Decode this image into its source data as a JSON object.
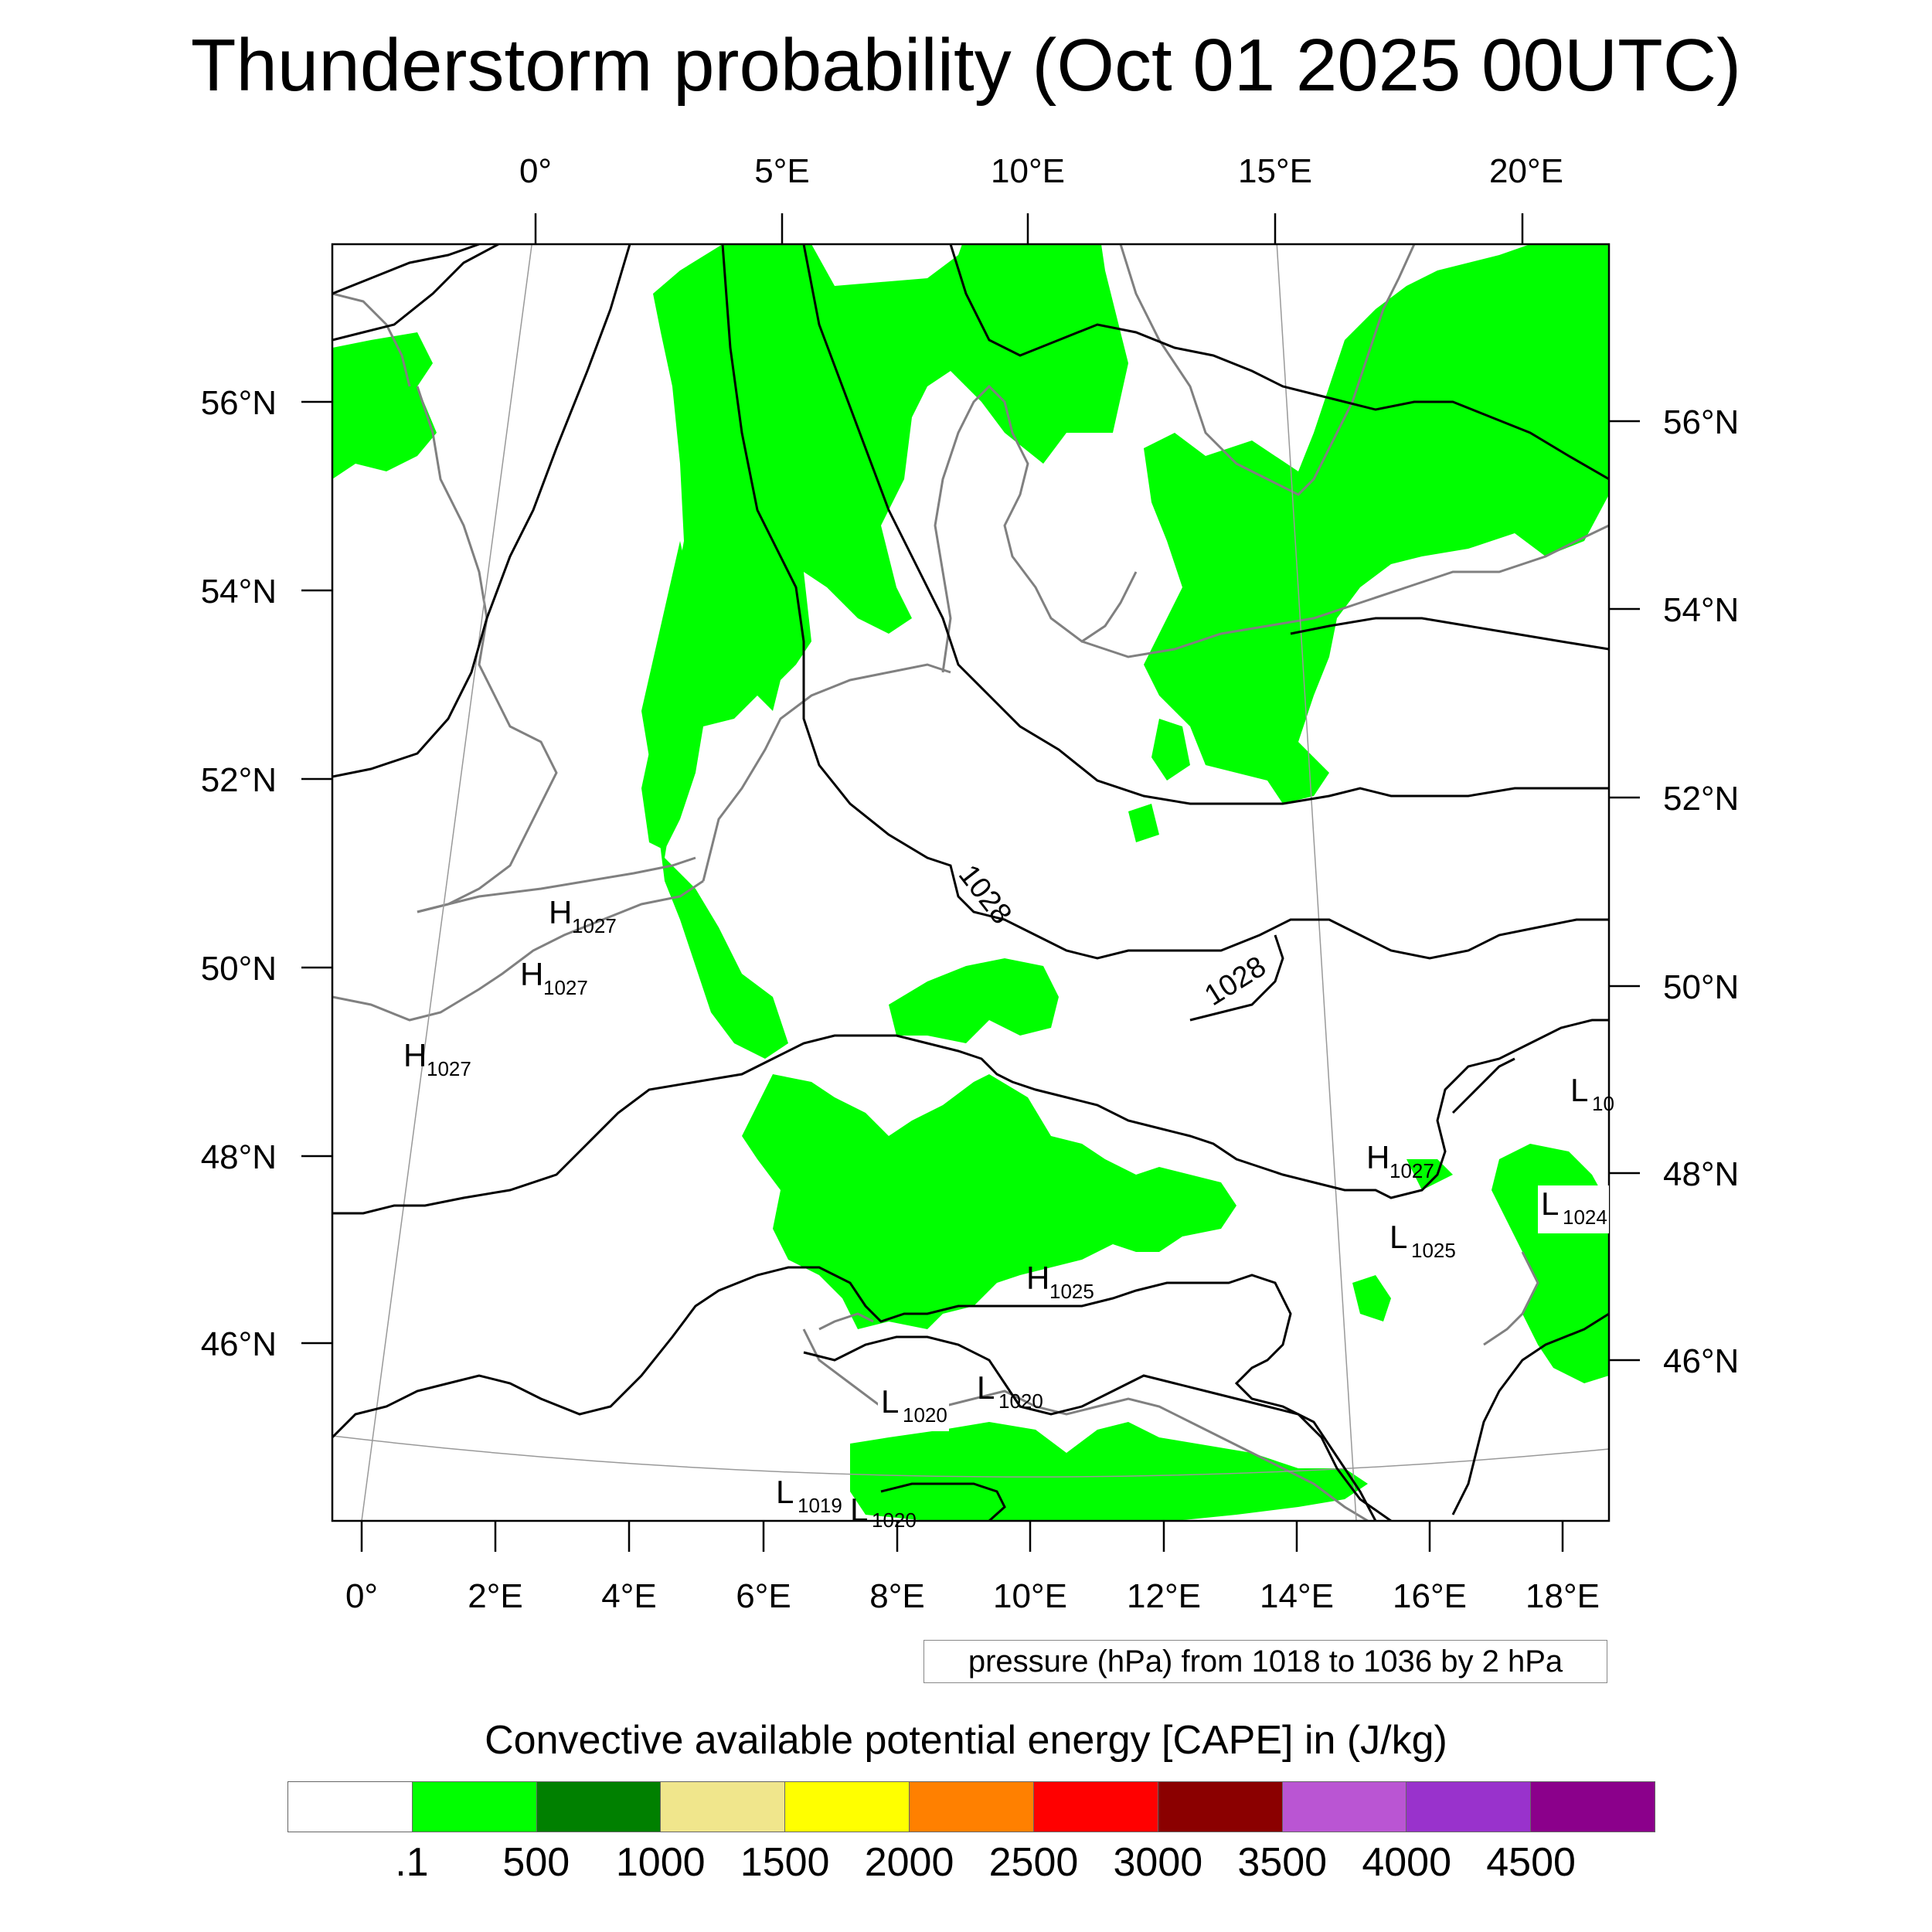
{
  "title": "Thunderstorm probability (Oct 01 2025 00UTC)",
  "map": {
    "top_lon_labels": [
      "0°",
      "5°E",
      "10°E",
      "15°E",
      "20°E"
    ],
    "bottom_lon_labels": [
      "0°",
      "2°E",
      "4°E",
      "6°E",
      "8°E",
      "10°E",
      "12°E",
      "14°E",
      "16°E",
      "18°E"
    ],
    "left_lat_labels": [
      "56°N",
      "54°N",
      "52°N",
      "50°N",
      "48°N",
      "46°N"
    ],
    "right_lat_labels": [
      "56°N",
      "54°N",
      "52°N",
      "50°N",
      "48°N",
      "46°N"
    ],
    "isobar_labels": [
      "1028",
      "1028"
    ],
    "pressure_centers": [
      {
        "letter": "H",
        "value": "1027"
      },
      {
        "letter": "H",
        "value": "1027"
      },
      {
        "letter": "H",
        "value": "1027"
      },
      {
        "letter": "H",
        "value": "1027"
      },
      {
        "letter": "H",
        "value": "1025"
      },
      {
        "letter": "L",
        "value": "1025"
      },
      {
        "letter": "L",
        "value": "1024"
      },
      {
        "letter": "L",
        "value": "10"
      },
      {
        "letter": "L",
        "value": "1020"
      },
      {
        "letter": "L",
        "value": "1020"
      },
      {
        "letter": "L",
        "value": "1019"
      },
      {
        "letter": "L",
        "value": "1020"
      }
    ],
    "cape_fill_color": "#00ff00",
    "isobar_color": "#000000",
    "coastline_color": "#808080"
  },
  "contour_note": "pressure (hPa) from 1018 to 1036 by 2 hPa",
  "colorbar": {
    "title": "Convective available potential energy [CAPE] in (J/kg)",
    "colors": [
      "#ffffff",
      "#00ff00",
      "#008000",
      "#f0e68c",
      "#ffff00",
      "#ff8000",
      "#ff0000",
      "#8b0000",
      "#ba55d3",
      "#9932cc",
      "#8b008b"
    ],
    "labels": [
      ".1",
      "500",
      "1000",
      "1500",
      "2000",
      "2500",
      "3000",
      "3500",
      "4000",
      "4500"
    ]
  }
}
